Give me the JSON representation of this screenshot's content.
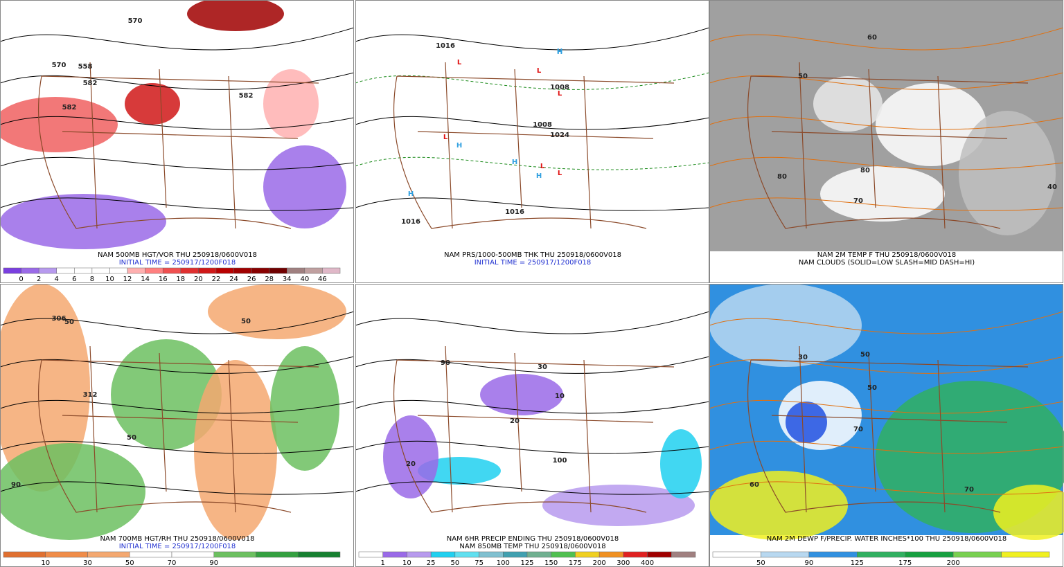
{
  "panels": [
    {
      "caption": [
        {
          "text": "NAM 500MB HGT/VOR THU 250918/0600V018",
          "color": "#000000"
        },
        {
          "text": "INITIAL TIME = 250917/1200F018",
          "color": "#1f2fd0"
        }
      ],
      "colorbar": {
        "colors": [
          "#7a3fe0",
          "#9a6ae8",
          "#b79aee",
          "#ffffff",
          "#ffffff",
          "#ffffff",
          "#ffffff",
          "#ffb0b0",
          "#ff8080",
          "#f05050",
          "#e03030",
          "#d01818",
          "#b80000",
          "#a00000",
          "#880000",
          "#700000",
          "#a08080",
          "#c0a0a0",
          "#e0b8c8"
        ],
        "labels": [
          0,
          2,
          4,
          6,
          8,
          10,
          12,
          14,
          16,
          18,
          20,
          22,
          24,
          26,
          28,
          34,
          40,
          46
        ]
      },
      "map_labels": [
        "570",
        "582",
        "558",
        "570",
        "582",
        "582"
      ]
    },
    {
      "caption": [
        {
          "text": "NAM PRS/1000-500MB THK THU 250918/0600V018",
          "color": "#000000"
        },
        {
          "text": "INITIAL TIME = 250917/1200F018",
          "color": "#1f2fd0"
        }
      ],
      "map_labels": [
        "H",
        "H",
        "H",
        "H",
        "H",
        "H",
        "L",
        "L",
        "L",
        "L",
        "L",
        "L",
        "1016",
        "1016",
        "1008",
        "1016",
        "1024",
        "1008"
      ]
    },
    {
      "caption": [
        {
          "text": "NAM 2M TEMP F THU 250918/0600V018",
          "color": "#000000"
        },
        {
          "text": "NAM CLOUDS (SOLID=LOW SLASH=MID DASH=HI)",
          "color": "#000000"
        }
      ],
      "map_labels": [
        "60",
        "70",
        "80",
        "40",
        "50",
        "80"
      ]
    },
    {
      "caption": [
        {
          "text": "NAM 700MB HGT/RH THU 250918/0600V018",
          "color": "#000000"
        },
        {
          "text": "INITIAL TIME = 250917/1200F018",
          "color": "#1f2fd0"
        }
      ],
      "colorbar": {
        "colors": [
          "#e07030",
          "#f08c48",
          "#f4a870",
          "#ffffff",
          "#ffffff",
          "#6cc060",
          "#34a040",
          "#168030"
        ],
        "labels": [
          10,
          30,
          50,
          70,
          90
        ]
      },
      "map_labels": [
        "50",
        "312",
        "50",
        "90",
        "306",
        "50"
      ]
    },
    {
      "caption": [
        {
          "text": "NAM 6HR PRECIP ENDING THU 250918/0600V018",
          "color": "#000000"
        },
        {
          "text": "NAM 850MB TEMP THU 250918/0600V018",
          "color": "#000000"
        }
      ],
      "colorbar": {
        "colors": [
          "#ffffff",
          "#9a6ae8",
          "#b79aee",
          "#20d0f0",
          "#60e0f0",
          "#80c0d0",
          "#40a0b0",
          "#70b090",
          "#50c050",
          "#f0d020",
          "#f09020",
          "#e02020",
          "#a00000",
          "#a08080"
        ],
        "labels": [
          1,
          10,
          25,
          50,
          75,
          100,
          125,
          150,
          175,
          200,
          300,
          400
        ]
      },
      "map_labels": [
        "20",
        "20",
        "30",
        "90",
        "100",
        "10"
      ]
    },
    {
      "caption": [
        {
          "text": "NAM 2M DEWP F/PRECIP. WATER INCHES*100 THU 250918/0600V018",
          "color": "#000000"
        }
      ],
      "colorbar": {
        "colors": [
          "#ffffff",
          "#b8d8f0",
          "#3090e0",
          "#30b060",
          "#16a040",
          "#78d050",
          "#f0f020"
        ],
        "labels": [
          50,
          90,
          125,
          175,
          200
        ]
      },
      "map_labels": [
        "30",
        "50",
        "70",
        "60",
        "50",
        "70"
      ]
    }
  ]
}
